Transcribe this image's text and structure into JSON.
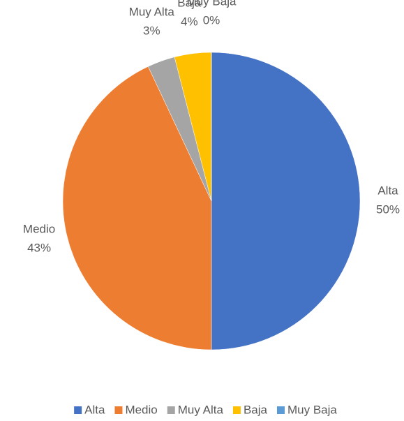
{
  "chart_data": {
    "type": "pie",
    "categories": [
      "Alta",
      "Medio",
      "Muy Alta",
      "Baja",
      "Muy Baja"
    ],
    "values": [
      50,
      43,
      3,
      4,
      0
    ],
    "value_labels": [
      "50%",
      "43%",
      "3%",
      "4%",
      "0%"
    ],
    "colors": [
      "#4472c4",
      "#ed7d31",
      "#a5a5a5",
      "#ffc000",
      "#5b9bd5"
    ],
    "legend": "bottom"
  }
}
